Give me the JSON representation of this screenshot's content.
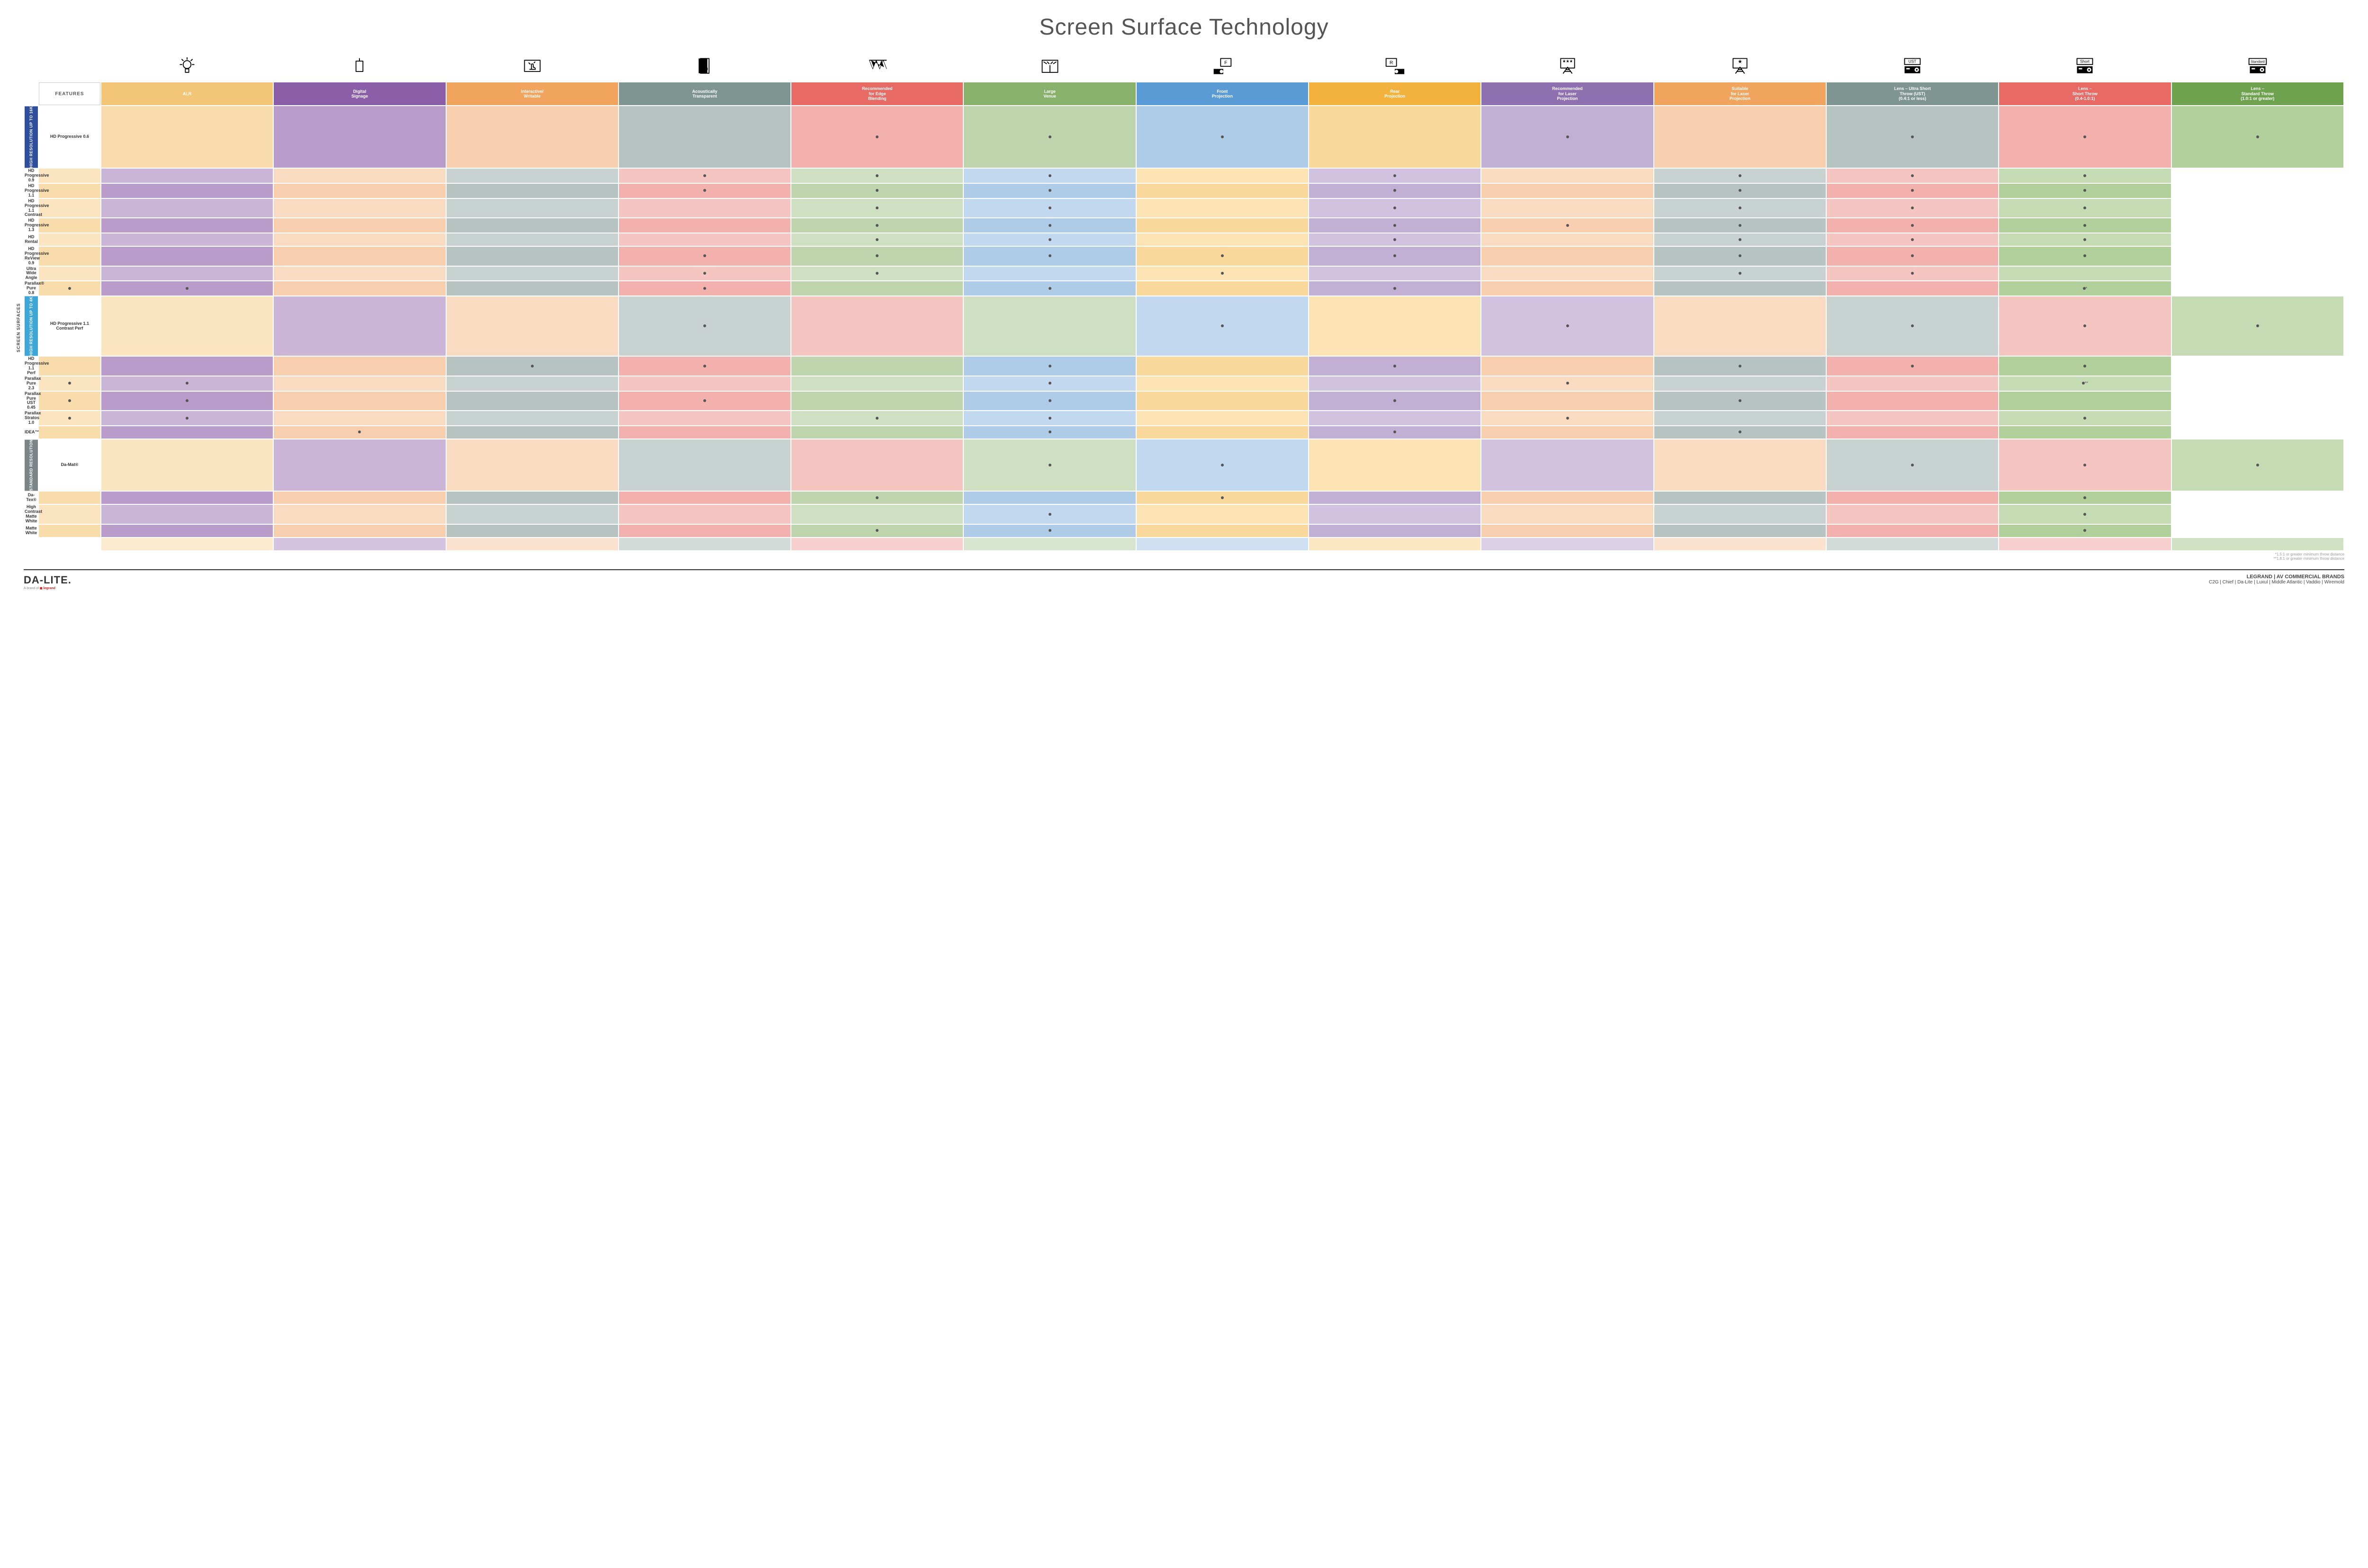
{
  "title": "Screen Surface Technology",
  "side_label": "SCREEN SURFACES",
  "features_header": "FEATURES",
  "columns": [
    {
      "label": "ALR",
      "colors": [
        "#f3c677",
        "#f8dcab"
      ]
    },
    {
      "label": "Digital\nSignage",
      "colors": [
        "#8b5fa8",
        "#b99cc9"
      ]
    },
    {
      "label": "Interactive/\nWritable",
      "colors": [
        "#f0a45e",
        "#f7cfae"
      ]
    },
    {
      "label": "Acoustically\nTransparent",
      "colors": [
        "#7e9591",
        "#b6c3c0"
      ]
    },
    {
      "label": "Recommended\nfor Edge\nBlending",
      "colors": [
        "#e86a64",
        "#f2b1ac"
      ]
    },
    {
      "label": "Large\nVenue",
      "colors": [
        "#88b26b",
        "#bdd4ad"
      ]
    },
    {
      "label": "Front\nProjection",
      "colors": [
        "#5a9bd5",
        "#aecbe8"
      ]
    },
    {
      "label": "Rear\nProjection",
      "colors": [
        "#f3b23e",
        "#f9d99b"
      ]
    },
    {
      "label": "Recommended\nfor Laser\nProjection",
      "colors": [
        "#8e6fb0",
        "#c1afd4"
      ]
    },
    {
      "label": "Suitable\nfor Laser\nProjection",
      "colors": [
        "#f0a45e",
        "#f7cfae"
      ]
    },
    {
      "label": "Lens – Ultra Short\nThrow (UST)\n(0.4:1 or less)",
      "colors": [
        "#7e9591",
        "#b6c3c0"
      ]
    },
    {
      "label": "Lens –\nShort Throw\n(0.4-1.0:1)",
      "colors": [
        "#e86a64",
        "#f2b1ac"
      ]
    },
    {
      "label": "Lens –\nStandard Throw\n(1.0:1 or greater)",
      "colors": [
        "#6fa24e",
        "#b1cf9b"
      ]
    }
  ],
  "groups": [
    {
      "label": "HIGH RESOLUTION UP TO 16K",
      "bg": "#2f4e9c",
      "rows": [
        {
          "label": "HD Progressive 0.6",
          "cells": [
            "",
            "",
            "",
            "",
            "•",
            "•",
            "•",
            "",
            "•",
            "",
            "•",
            "•",
            "•"
          ]
        },
        {
          "label": "HD Progressive 0.9",
          "cells": [
            "",
            "",
            "",
            "",
            "•",
            "•",
            "•",
            "",
            "•",
            "",
            "•",
            "•",
            "•"
          ]
        },
        {
          "label": "HD Progressive 1.1",
          "cells": [
            "",
            "",
            "",
            "",
            "•",
            "•",
            "•",
            "",
            "•",
            "",
            "•",
            "•",
            "•"
          ]
        },
        {
          "label": "HD Progressive\n1.1 Contrast",
          "cells": [
            "",
            "",
            "",
            "",
            "",
            "•",
            "•",
            "",
            "•",
            "",
            "•",
            "•",
            "•"
          ]
        },
        {
          "label": "HD Progressive 1.3",
          "cells": [
            "",
            "",
            "",
            "",
            "",
            "•",
            "•",
            "",
            "•",
            "•",
            "•",
            "•",
            "•"
          ]
        },
        {
          "label": "HD Rental",
          "cells": [
            "",
            "",
            "",
            "",
            "",
            "•",
            "•",
            "",
            "•",
            "",
            "•",
            "•",
            "•"
          ]
        },
        {
          "label": "HD Progressive ReView 0.9",
          "cells": [
            "",
            "",
            "",
            "",
            "•",
            "•",
            "•",
            "•",
            "•",
            "",
            "•",
            "•",
            "•"
          ]
        },
        {
          "label": "Ultra Wide Angle",
          "cells": [
            "",
            "",
            "",
            "",
            "•",
            "•",
            "",
            "•",
            "",
            "",
            "•",
            "•",
            ""
          ]
        },
        {
          "label": "Parallax® Pure 0.8",
          "cells": [
            "•",
            "•",
            "",
            "",
            "•",
            "",
            "•",
            "",
            "•",
            "",
            "",
            "",
            "•*"
          ]
        }
      ]
    },
    {
      "label": "HIGH RESOLUTION UP TO 4K",
      "bg": "#3fa7d6",
      "rows": [
        {
          "label": "HD Progressive 1.1\nContrast Perf",
          "cells": [
            "",
            "",
            "",
            "•",
            "",
            "",
            "•",
            "",
            "•",
            "",
            "•",
            "•",
            "•"
          ]
        },
        {
          "label": "HD Progressive 1.1 Perf",
          "cells": [
            "",
            "",
            "",
            "•",
            "•",
            "",
            "•",
            "",
            "•",
            "",
            "•",
            "•",
            "•"
          ]
        },
        {
          "label": "Parallax Pure 2.3",
          "cells": [
            "•",
            "•",
            "",
            "",
            "",
            "",
            "•",
            "",
            "",
            "•",
            "",
            "",
            "•**"
          ]
        },
        {
          "label": "Parallax Pure UST 0.45",
          "cells": [
            "•",
            "•",
            "",
            "",
            "•",
            "",
            "•",
            "",
            "•",
            "",
            "•",
            "",
            ""
          ]
        },
        {
          "label": "Parallax Stratos 1.0",
          "cells": [
            "•",
            "•",
            "",
            "",
            "",
            "•",
            "•",
            "",
            "",
            "•",
            "",
            "",
            "•"
          ]
        },
        {
          "label": "IDEA™",
          "cells": [
            "",
            "",
            "•",
            "",
            "",
            "",
            "•",
            "",
            "•",
            "",
            "•",
            "",
            ""
          ]
        }
      ]
    },
    {
      "label": "STANDARD\nRESOLUTION",
      "bg": "#7b8486",
      "rows": [
        {
          "label": "Da-Mat®",
          "cells": [
            "",
            "",
            "",
            "",
            "",
            "•",
            "•",
            "",
            "",
            "",
            "•",
            "•",
            "•"
          ]
        },
        {
          "label": "Da-Tex®",
          "cells": [
            "",
            "",
            "",
            "",
            "",
            "•",
            "",
            "•",
            "",
            "",
            "",
            "",
            "•"
          ]
        },
        {
          "label": "High Contrast\nMatte White",
          "cells": [
            "",
            "",
            "",
            "",
            "",
            "",
            "•",
            "",
            "",
            "",
            "",
            "",
            "•"
          ]
        },
        {
          "label": "Matte White",
          "cells": [
            "",
            "",
            "",
            "",
            "",
            "•",
            "•",
            "",
            "",
            "",
            "",
            "",
            "•"
          ]
        }
      ]
    }
  ],
  "footnotes": [
    "*1.5:1 or greater minimum throw distance",
    "**1.8:1 or greater minimum throw distance"
  ],
  "logo": "DA-LITE.",
  "logo_sub_prefix": "A brand of ",
  "logo_sub_brand": "legrand",
  "brands_title": "LEGRAND | AV COMMERCIAL BRANDS",
  "brands_list": "C2G  |  Chief  |  Da-Lite  |  Luxul  |  Middle Atlantic  |  Vaddio  |  Wiremold",
  "icons": [
    "bulb",
    "box",
    "touch",
    "speaker",
    "triangles",
    "venue",
    "projF",
    "projR",
    "laserRec",
    "laserSuit",
    "ust",
    "short",
    "standard"
  ]
}
